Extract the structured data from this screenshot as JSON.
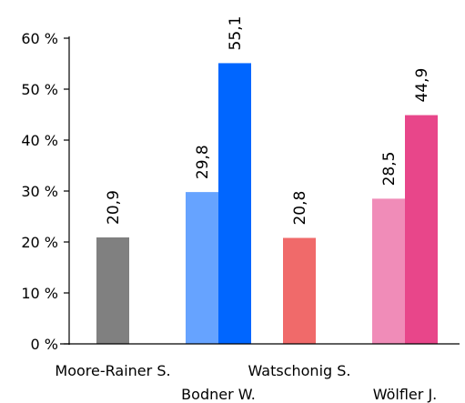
{
  "chart_data": {
    "type": "bar",
    "title": "",
    "xlabel": "",
    "ylabel": "",
    "ylim": [
      0,
      60
    ],
    "y_ticks": [
      "0 %",
      "10 %",
      "20 %",
      "30 %",
      "40 %",
      "50 %",
      "60 %"
    ],
    "grid": false,
    "legend": "none",
    "categories": [
      "Moore-Rainer S.",
      "Bodner W.",
      "Watschonig S.",
      "Wölfler J."
    ],
    "bars": [
      {
        "category": "Moore-Rainer S.",
        "value": 20.9,
        "label": "20,9",
        "color": "#808080"
      },
      {
        "category": "Bodner W.",
        "value": 29.8,
        "label": "29,8",
        "color": "#66a3ff"
      },
      {
        "category": "Bodner W.",
        "value": 55.1,
        "label": "55,1",
        "color": "#0066ff"
      },
      {
        "category": "Watschonig S.",
        "value": 20.8,
        "label": "20,8",
        "color": "#f06a6a"
      },
      {
        "category": "Wölfler J.",
        "value": 28.5,
        "label": "28,5",
        "color": "#f08cb8"
      },
      {
        "category": "Wölfler J.",
        "value": 44.9,
        "label": "44,9",
        "color": "#e8468a"
      }
    ]
  }
}
